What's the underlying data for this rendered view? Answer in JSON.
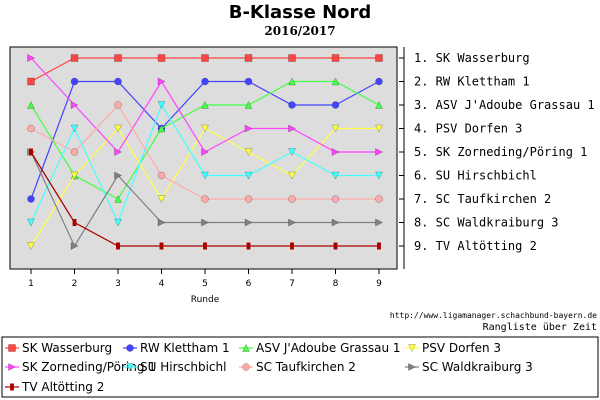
{
  "header": {
    "title": "B-Klasse Nord",
    "subtitle": "2016/2017"
  },
  "footer": {
    "source": "http://www.ligamanager.schachbund-bayern.de",
    "caption": "Rangliste über Zeit"
  },
  "chart_data": {
    "type": "line",
    "title": "B-Klasse Nord",
    "subtitle": "2016/2017",
    "xlabel": "Runde",
    "ylabel": "",
    "x": [
      1,
      2,
      3,
      4,
      5,
      6,
      7,
      8,
      9
    ],
    "ylim": [
      1,
      9
    ],
    "y_inverted": true,
    "grid": false,
    "legend": "bottom",
    "right_labels": [
      "1. SK Wasserburg",
      "2. RW Klettham 1",
      "3. ASV J'Adoube Grassau 1",
      "4. PSV Dorfen 3",
      "5. SK Zorneding/Pöring 1",
      "6. SU Hirschbichl",
      "7. SC Taufkirchen 2",
      "8. SC Waldkraiburg 3",
      "9. TV Altötting 2"
    ],
    "series": [
      {
        "name": "SK Wasserburg",
        "color": "#ff4444",
        "marker": "square",
        "values": [
          2,
          1,
          1,
          1,
          1,
          1,
          1,
          1,
          1
        ]
      },
      {
        "name": "RW Klettham 1",
        "color": "#4444ff",
        "marker": "circle",
        "values": [
          7,
          2,
          2,
          4,
          2,
          2,
          3,
          3,
          2
        ]
      },
      {
        "name": "ASV J'Adoube Grassau 1",
        "color": "#44ff44",
        "marker": "triangle-up",
        "values": [
          3,
          6,
          7,
          4,
          3,
          3,
          2,
          2,
          3
        ]
      },
      {
        "name": "PSV Dorfen 3",
        "color": "#ffff44",
        "marker": "triangle-down",
        "values": [
          9,
          6,
          4,
          7,
          4,
          5,
          6,
          4,
          4
        ]
      },
      {
        "name": "SK Zorneding/Pöring 1",
        "color": "#ff44ff",
        "marker": "triangle-right",
        "values": [
          1,
          3,
          5,
          2,
          5,
          4,
          4,
          5,
          5
        ]
      },
      {
        "name": "SU Hirschbichl",
        "color": "#44ffff",
        "marker": "triangle-down",
        "values": [
          8,
          4,
          8,
          3,
          6,
          6,
          5,
          6,
          6
        ]
      },
      {
        "name": "SC Taufkirchen 2",
        "color": "#ffaaaa",
        "marker": "circle",
        "values": [
          4,
          5,
          3,
          6,
          7,
          7,
          7,
          7,
          7
        ]
      },
      {
        "name": "SC Waldkraiburg 3",
        "color": "#808080",
        "marker": "triangle-right",
        "values": [
          5,
          9,
          6,
          8,
          8,
          8,
          8,
          8,
          8
        ]
      },
      {
        "name": "TV Altötting 2",
        "color": "#aa0000",
        "marker": "bar",
        "values": [
          5,
          8,
          9,
          9,
          9,
          9,
          9,
          9,
          9
        ]
      }
    ]
  }
}
